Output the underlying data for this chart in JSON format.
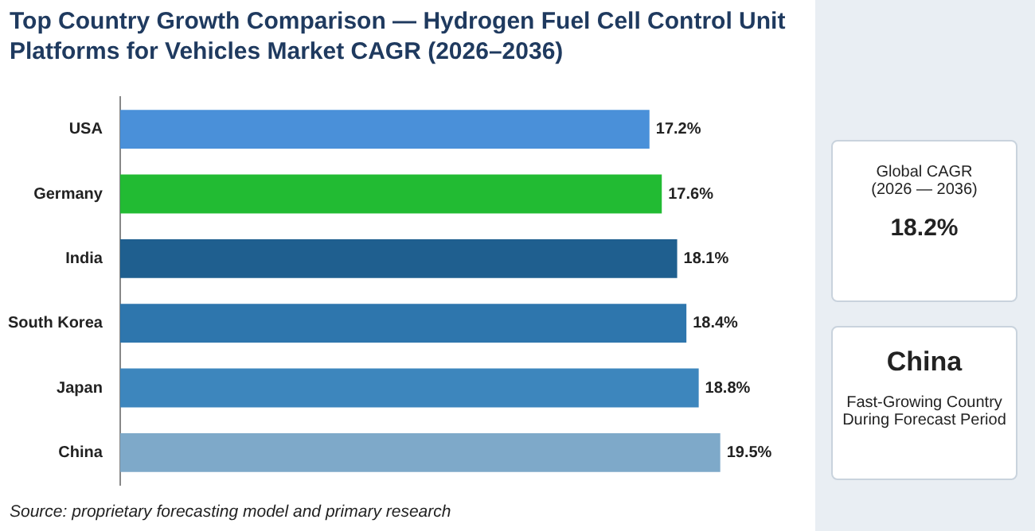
{
  "chart_data": [
    {
      "type": "bar",
      "orientation": "horizontal",
      "title": "Top Country Growth Comparison — Hydrogen Fuel Cell Control Unit Platforms for Vehicles Market CAGR (2026–2036)",
      "categories": [
        "USA",
        "Germany",
        "India",
        "South Korea",
        "Japan",
        "China"
      ],
      "values": [
        17.2,
        17.6,
        18.1,
        18.4,
        18.8,
        19.5
      ],
      "colors": [
        "#4a90d9",
        "#22bb33",
        "#1f5f8f",
        "#2e76ad",
        "#3d86bd",
        "#7ea9c9"
      ],
      "tick_labels": "y",
      "data_labels": true,
      "value_labels": [
        "17.2%",
        "17.6%",
        "18.1%",
        "18.4%",
        "18.8%",
        "19.5%"
      ],
      "annotations": [
        "Source: proprietary forecasting model and primary research"
      ]
    },
    {
      "type": "other",
      "annotations": [
        "Global CAGR",
        "(2026 — 2036)",
        "18.2%",
        "China",
        "Fast-Growing Country",
        "During Forecast Period"
      ]
    }
  ]
}
